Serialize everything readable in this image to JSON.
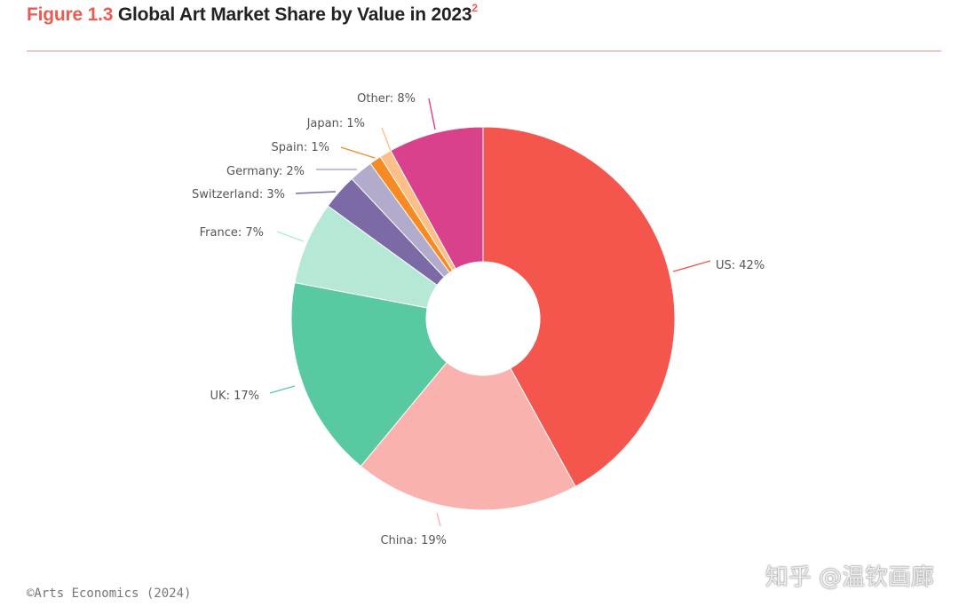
{
  "header": {
    "figure_number": "Figure 1.3",
    "title": "Global Art Market Share by Value in 2023",
    "superscript": "2"
  },
  "source": "©Arts Economics (2024)",
  "watermark": "知乎 @温钦画廊",
  "chart_data": {
    "type": "pie",
    "donut": true,
    "title": "Global Art Market Share by Value in 2023",
    "slices": [
      {
        "label": "US: 42%",
        "value": 42,
        "color": "#f4564e"
      },
      {
        "label": "China: 19%",
        "value": 19,
        "color": "#f9b2ae"
      },
      {
        "label": "UK: 17%",
        "value": 17,
        "color": "#58c9a1"
      },
      {
        "label": "France: 7%",
        "value": 7,
        "color": "#b6e8d6"
      },
      {
        "label": "Switzerland: 3%",
        "value": 3,
        "color": "#7b6aa6"
      },
      {
        "label": "Germany: 2%",
        "value": 2,
        "color": "#b2abcc"
      },
      {
        "label": "Spain: 1%",
        "value": 1,
        "color": "#f78a22"
      },
      {
        "label": "Japan: 1%",
        "value": 1,
        "color": "#fbbf87"
      },
      {
        "label": "Other: 8%",
        "value": 8,
        "color": "#d9418c"
      }
    ]
  }
}
